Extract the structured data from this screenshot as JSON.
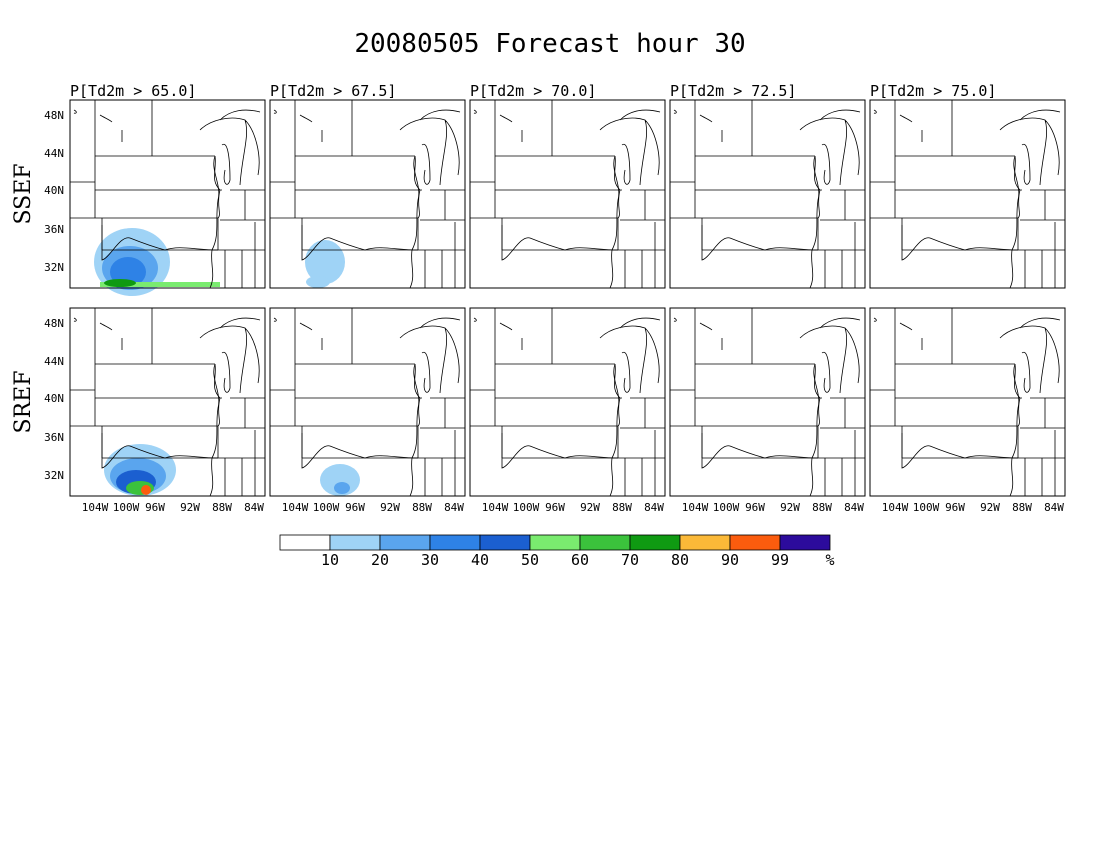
{
  "title": "20080505 Forecast hour 30",
  "columns": [
    "P[Td2m > 65.0]",
    "P[Td2m > 67.5]",
    "P[Td2m > 70.0]",
    "P[Td2m > 72.5]",
    "P[Td2m > 75.0]"
  ],
  "rows": [
    "SSEF",
    "SREF"
  ],
  "lat_labels": [
    "48N",
    "44N",
    "40N",
    "36N",
    "32N"
  ],
  "lon_labels": [
    "104W",
    "100W",
    "96W",
    "92W",
    "88W",
    "84W"
  ],
  "colorbar": {
    "colors": [
      "#ffffff",
      "#9fd3f6",
      "#5aa5ee",
      "#2e82e6",
      "#1b5fd0",
      "#7aeb6f",
      "#3bc23c",
      "#0f9a12",
      "#fbb938",
      "#fb5c0e",
      "#2c0b9c"
    ],
    "labels": [
      "10",
      "20",
      "30",
      "40",
      "50",
      "60",
      "70",
      "80",
      "90",
      "99",
      "%"
    ]
  }
}
